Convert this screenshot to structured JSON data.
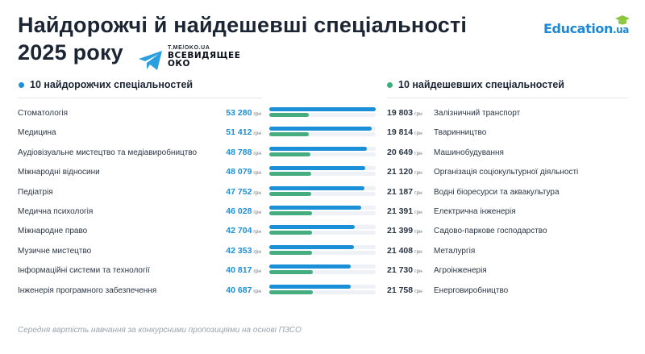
{
  "header": {
    "title_line1": "Найдорожчі й найдешевші спеціальності",
    "title_line2": "2025 року",
    "telegram_link": "T.ME/OKO.UA",
    "telegram_name": "ВСЕВИДЯЩЕЕ ОКО",
    "brand_main": "Education",
    "brand_tld": ".ua"
  },
  "colors": {
    "blue": "#1b8fd8",
    "green": "#45ad7f"
  },
  "icons": {
    "telegram": "telegram-plane-icon",
    "brand": "graduation-cap-icon"
  },
  "left_heading": "10 найдорожчих спеціальностей",
  "right_heading": "10 найдешевших спеціальностей",
  "currency": "грн",
  "footnote": "Середня вартість навчання за конкурсними пропозиціями на основі ПЗСО",
  "chart_data": {
    "type": "bar",
    "title": "Найдорожчі й найдешевші спеціальності 2025 року",
    "unit": "грн",
    "scale_max": 53280,
    "series": [
      {
        "name": "10 найдорожчих спеціальностей",
        "color": "#1b8fd8",
        "categories": [
          "Стоматологія",
          "Медицина",
          "Аудіовізуальне мистецтво та медіавиробництво",
          "Міжнародні відносини",
          "Педіатрія",
          "Медична психологія",
          "Міжнародне право",
          "Музичне мистецтво",
          "Інформаційні системи та технології",
          "Інженерія програмного забезпечення"
        ],
        "values": [
          53280,
          51412,
          48788,
          48079,
          47752,
          46028,
          42704,
          42353,
          40817,
          40687
        ],
        "labels": [
          "53 280",
          "51 412",
          "48 788",
          "48 079",
          "47 752",
          "46 028",
          "42 704",
          "42 353",
          "40 817",
          "40 687"
        ]
      },
      {
        "name": "10 найдешевших спеціальностей",
        "color": "#45ad7f",
        "categories": [
          "Залізничний транспорт",
          "Тваринництво",
          "Машинобудування",
          "Організація соціокультурної діяльності",
          "Водні біоресурси та аквакультура",
          "Електрична інженерія",
          "Садово-паркове господарство",
          "Металургія",
          "Агроінженерія",
          "Енерговиробництво"
        ],
        "values": [
          19803,
          19814,
          20649,
          21120,
          21187,
          21391,
          21399,
          21408,
          21730,
          21758
        ],
        "labels": [
          "19 803",
          "19 814",
          "20 649",
          "21 120",
          "21 187",
          "21 391",
          "21 399",
          "21 408",
          "21 730",
          "21 758"
        ]
      }
    ]
  }
}
